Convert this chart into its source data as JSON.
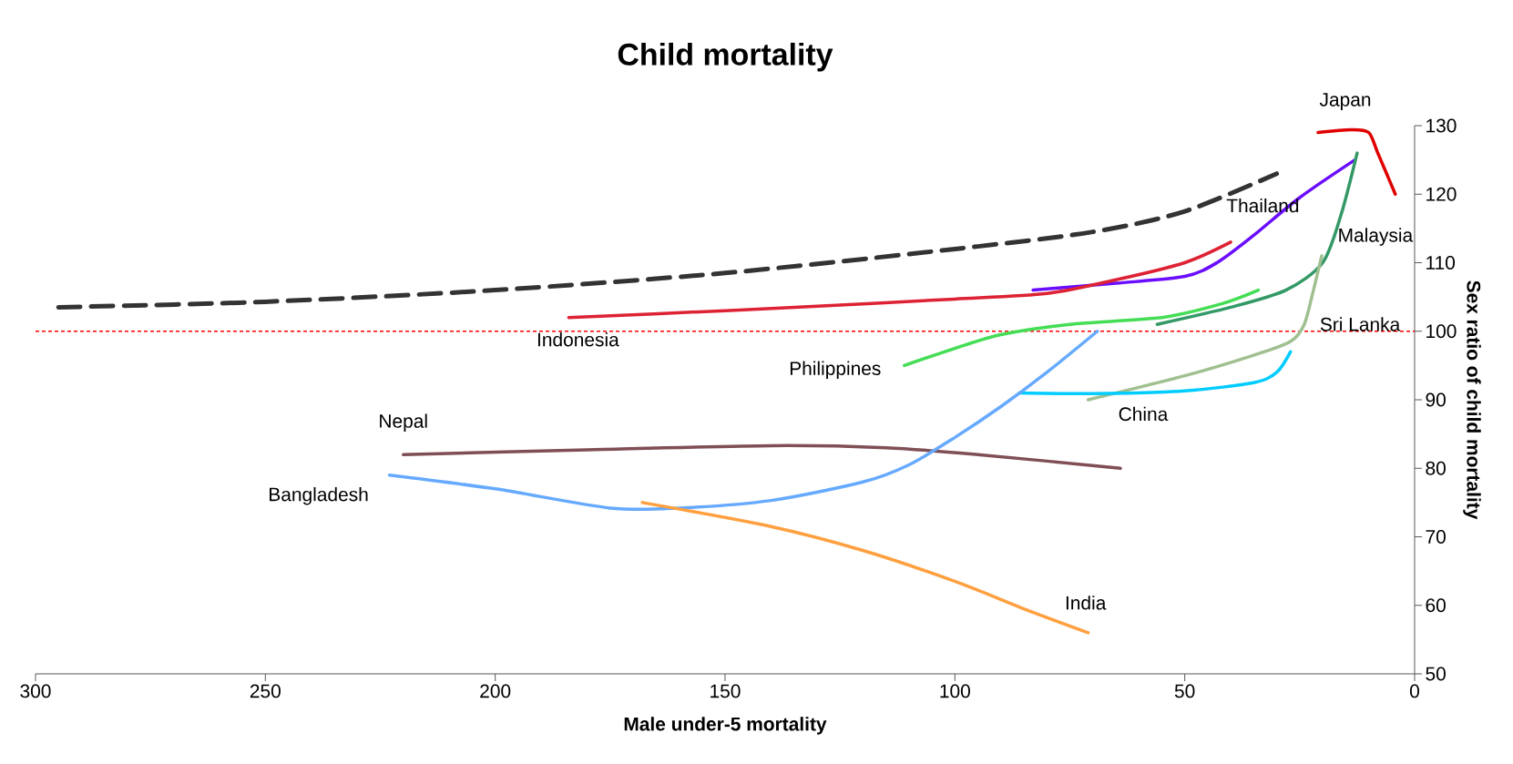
{
  "chart_data": {
    "type": "line",
    "title": "Child mortality",
    "xlabel": "Male under-5 mortality",
    "ylabel": "Sex ratio of child mortality",
    "xlim": [
      300,
      0
    ],
    "ylim": [
      50,
      130
    ],
    "xticks": [
      300,
      250,
      200,
      150,
      100,
      50,
      0
    ],
    "yticks": [
      50,
      60,
      70,
      80,
      90,
      100,
      110,
      120,
      130
    ],
    "grid": false,
    "legend": false,
    "marker": "none",
    "series": [
      {
        "color": "#333333",
        "line_style": "dashed",
        "x": [
          295,
          250,
          200,
          150,
          100,
          70,
          50,
          30
        ],
        "values": [
          103.5,
          104.3,
          106,
          108.5,
          112,
          114.5,
          117.5,
          123
        ]
      },
      {
        "name": "Japan",
        "color": "#e00000",
        "x": [
          21,
          14,
          10,
          8,
          4.2
        ],
        "values": [
          129,
          129.4,
          129,
          126,
          120
        ]
      },
      {
        "name": "Thailand",
        "color": "#6a0dff",
        "x": [
          83,
          65,
          50,
          43,
          35,
          25,
          13
        ],
        "values": [
          106,
          107,
          108,
          110,
          114,
          119.5,
          125
        ]
      },
      {
        "name": "Malaysia",
        "color": "#339966",
        "x": [
          56,
          40,
          28,
          20,
          16,
          12.5
        ],
        "values": [
          101,
          103.5,
          106,
          110,
          117,
          126
        ]
      },
      {
        "name": "Sri Lanka",
        "color": "#a0c090",
        "x": [
          71,
          50,
          35,
          27,
          24,
          22,
          20.2
        ],
        "values": [
          90,
          93.5,
          96.5,
          98.5,
          101,
          106,
          111
        ]
      },
      {
        "name": "China",
        "color": "#00ccff",
        "x": [
          86,
          70,
          50,
          35,
          30,
          27
        ],
        "values": [
          91,
          90.9,
          91.3,
          92.5,
          94,
          97
        ]
      },
      {
        "name": "Philippines",
        "color": "#44dd55",
        "x": [
          111,
          100,
          90,
          75,
          55,
          42,
          34
        ],
        "values": [
          95,
          97.5,
          99.5,
          101,
          102,
          104,
          106
        ]
      },
      {
        "name": "Indonesia",
        "color": "#dd2233",
        "x": [
          184,
          150,
          120,
          100,
          80,
          65,
          50,
          40
        ],
        "values": [
          102,
          103,
          104,
          104.7,
          105.5,
          107.5,
          110,
          113
        ]
      },
      {
        "name": "Nepal",
        "color": "#7f4f55",
        "x": [
          220,
          180,
          140,
          115,
          95,
          64
        ],
        "values": [
          82,
          82.7,
          83.3,
          83,
          82,
          80
        ]
      },
      {
        "name": "Bangladesh",
        "color": "#66aaff",
        "x": [
          223,
          200,
          175,
          160,
          140,
          120,
          110,
          100,
          90,
          80,
          69
        ],
        "values": [
          79,
          77,
          74.2,
          74.2,
          75.3,
          78,
          80.5,
          84.5,
          89,
          94,
          100
        ]
      },
      {
        "name": "India",
        "color": "#ffa040",
        "x": [
          168,
          140,
          120,
          100,
          85,
          71
        ],
        "values": [
          75,
          71.5,
          68,
          63.5,
          59.5,
          56
        ]
      }
    ],
    "ref_lines": [
      {
        "axis": "y",
        "value": 100,
        "color": "#ff0000",
        "line_style": "dashed"
      }
    ]
  }
}
